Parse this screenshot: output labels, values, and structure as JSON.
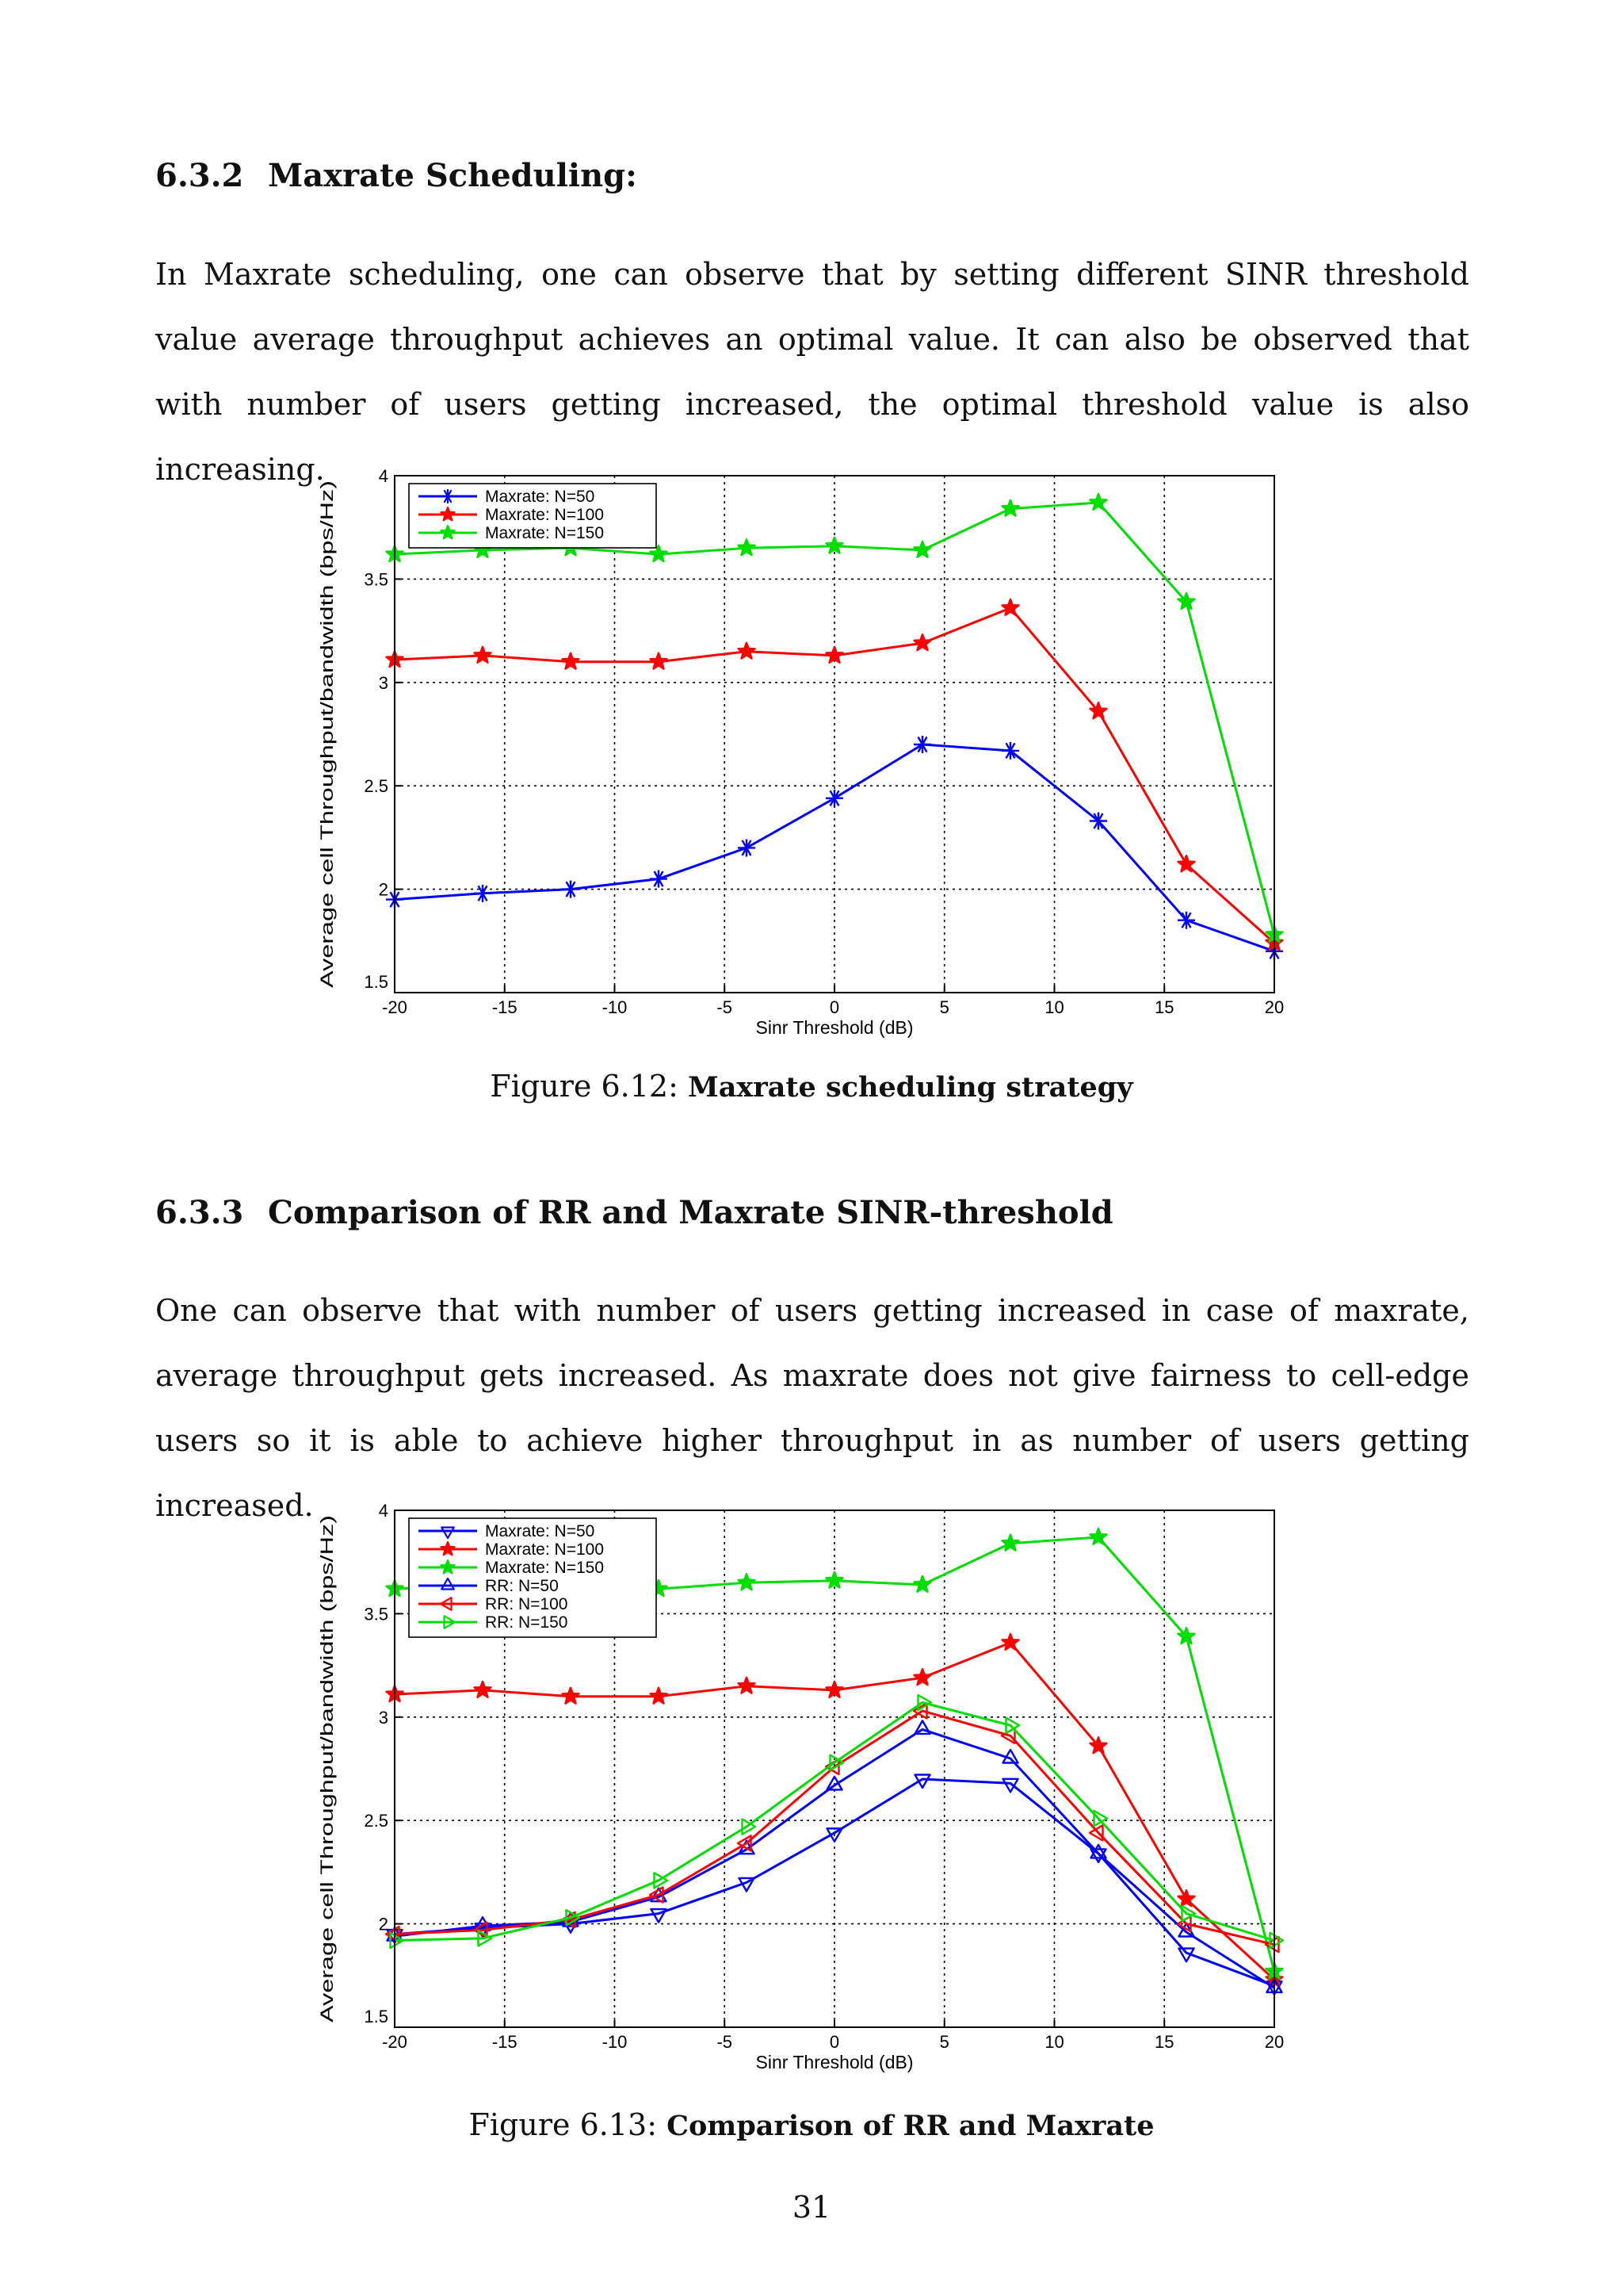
{
  "section_632": {
    "number": "6.3.2",
    "title": "Maxrate Scheduling:",
    "paragraph": "In Maxrate scheduling, one can observe that by setting different SINR threshold value average throughput achieves an optimal value. It can also be observed that with number of users getting increased, the optimal threshold value is also increasing."
  },
  "figure_612": {
    "caption_prefix": "Figure 6.12:",
    "caption_text": "Maxrate scheduling strategy"
  },
  "section_633": {
    "number": "6.3.3",
    "title": "Comparison of RR and Maxrate SINR-threshold",
    "paragraph": "One can observe that with number of users getting increased in case of maxrate, average throughput gets increased. As maxrate does not give fairness to cell-edge users so it is able to achieve higher throughput in as number of users getting increased."
  },
  "figure_613": {
    "caption_prefix": "Figure 6.13:",
    "caption_text": "Comparison of RR and Maxrate"
  },
  "page_number": "31",
  "chart_data": [
    {
      "type": "line",
      "xlabel": "Sinr Threshold (dB)",
      "ylabel": "Average cell Throughput/bandwidth (bps/Hz)",
      "xlim": [
        -20,
        20
      ],
      "ylim": [
        1.5,
        4
      ],
      "xticks": [
        -20,
        -15,
        -10,
        -5,
        0,
        5,
        10,
        15,
        20
      ],
      "yticks": [
        1.5,
        2,
        2.5,
        3,
        3.5,
        4
      ],
      "xtick_labels": [
        "-20",
        "-15",
        "-10",
        "-5",
        "0",
        "5",
        "10",
        "15",
        "20"
      ],
      "ytick_labels": [
        "1.5",
        "2",
        "2.5",
        "3",
        "3.5",
        "4"
      ],
      "grid": true,
      "legend_position": "top-left",
      "x": [
        -20,
        -16,
        -12,
        -8,
        -4,
        0,
        4,
        8,
        12,
        16,
        20
      ],
      "series": [
        {
          "name": "Maxrate: N=50",
          "color": "#0000ff",
          "marker": "asterisk",
          "values": [
            1.95,
            1.98,
            2.0,
            2.05,
            2.2,
            2.44,
            2.7,
            2.67,
            2.33,
            1.85,
            1.7
          ]
        },
        {
          "name": "Maxrate: N=100",
          "color": "#ff0000",
          "marker": "star",
          "values": [
            3.11,
            3.13,
            3.1,
            3.1,
            3.15,
            3.13,
            3.19,
            3.36,
            2.86,
            2.12,
            1.74
          ]
        },
        {
          "name": "Maxrate: N=150",
          "color": "#00dd00",
          "marker": "star",
          "values": [
            3.62,
            3.64,
            3.65,
            3.62,
            3.65,
            3.66,
            3.64,
            3.84,
            3.87,
            3.39,
            1.78
          ]
        }
      ]
    },
    {
      "type": "line",
      "xlabel": "Sinr Threshold (dB)",
      "ylabel": "Average cell Throughput/bandwidth (bps/Hz)",
      "xlim": [
        -20,
        20
      ],
      "ylim": [
        1.5,
        4
      ],
      "xticks": [
        -20,
        -15,
        -10,
        -5,
        0,
        5,
        10,
        15,
        20
      ],
      "yticks": [
        1.5,
        2,
        2.5,
        3,
        3.5,
        4
      ],
      "xtick_labels": [
        "-20",
        "-15",
        "-10",
        "-5",
        "0",
        "5",
        "10",
        "15",
        "20"
      ],
      "ytick_labels": [
        "1.5",
        "2",
        "2.5",
        "3",
        "3.5",
        "4"
      ],
      "grid": true,
      "legend_position": "top-left",
      "x": [
        -20,
        -16,
        -12,
        -8,
        -4,
        0,
        4,
        8,
        12,
        16,
        20
      ],
      "series": [
        {
          "name": "Maxrate: N=50",
          "color": "#0000ff",
          "marker": "triangle-down",
          "values": [
            1.95,
            1.98,
            2.0,
            2.05,
            2.2,
            2.44,
            2.7,
            2.68,
            2.34,
            1.86,
            1.7
          ]
        },
        {
          "name": "Maxrate: N=100",
          "color": "#ff0000",
          "marker": "star",
          "values": [
            3.11,
            3.13,
            3.1,
            3.1,
            3.15,
            3.13,
            3.19,
            3.36,
            2.86,
            2.12,
            1.73
          ]
        },
        {
          "name": "Maxrate: N=150",
          "color": "#00dd00",
          "marker": "star",
          "values": [
            3.62,
            3.64,
            3.65,
            3.62,
            3.65,
            3.66,
            3.64,
            3.84,
            3.87,
            3.39,
            1.77
          ]
        },
        {
          "name": "RR: N=50",
          "color": "#0000ff",
          "marker": "triangle-up",
          "values": [
            1.94,
            1.99,
            2.01,
            2.13,
            2.36,
            2.67,
            2.94,
            2.8,
            2.34,
            1.96,
            1.69
          ]
        },
        {
          "name": "RR: N=100",
          "color": "#ff0000",
          "marker": "triangle-left",
          "values": [
            1.95,
            1.97,
            2.02,
            2.14,
            2.39,
            2.76,
            3.03,
            2.91,
            2.44,
            2.0,
            1.9
          ]
        },
        {
          "name": "RR: N=150",
          "color": "#00dd00",
          "marker": "triangle-right",
          "values": [
            1.92,
            1.93,
            2.03,
            2.21,
            2.47,
            2.78,
            3.07,
            2.96,
            2.51,
            2.05,
            1.92
          ]
        }
      ]
    }
  ]
}
